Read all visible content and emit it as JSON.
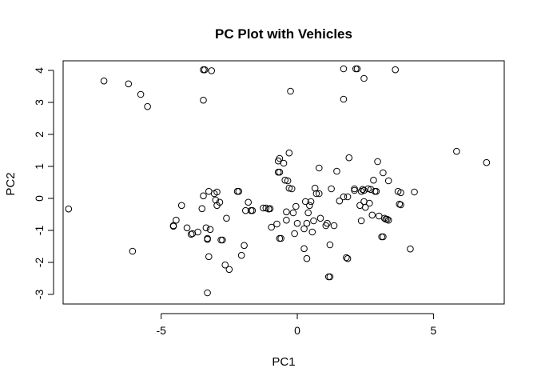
{
  "chart_data": {
    "type": "scatter",
    "title": "PC Plot with Vehicles",
    "xlabel": "PC1",
    "ylabel": "PC2",
    "xlim": [
      -8.6,
      7.6
    ],
    "ylim": [
      -3.3,
      4.3
    ],
    "xticks": [
      -5,
      0,
      5
    ],
    "xtick_labels": [
      "-5",
      "0",
      "5"
    ],
    "yticks": [
      -3,
      -2,
      -1,
      0,
      1,
      2,
      3,
      4
    ],
    "ytick_labels": [
      "-3",
      "-2",
      "-1",
      "0",
      "1",
      "2",
      "3",
      "4"
    ],
    "grid": false,
    "legend": "none",
    "marker": "open-circle",
    "points": [
      [
        -8.4,
        -0.33
      ],
      [
        -7.1,
        3.67
      ],
      [
        -6.2,
        3.58
      ],
      [
        -6.05,
        -1.65
      ],
      [
        -5.75,
        3.25
      ],
      [
        -5.5,
        2.87
      ],
      [
        -4.55,
        -0.87
      ],
      [
        -4.55,
        -0.85
      ],
      [
        -4.45,
        -0.68
      ],
      [
        -4.25,
        -0.22
      ],
      [
        -4.05,
        -0.92
      ],
      [
        -3.9,
        -1.12
      ],
      [
        -3.85,
        -1.1
      ],
      [
        -3.65,
        -1.05
      ],
      [
        -3.5,
        -0.32
      ],
      [
        -3.45,
        0.08
      ],
      [
        -3.45,
        4.02
      ],
      [
        -3.4,
        4.02
      ],
      [
        -3.45,
        3.07
      ],
      [
        -3.35,
        -0.92
      ],
      [
        -3.3,
        -1.28
      ],
      [
        -3.3,
        -1.25
      ],
      [
        -3.25,
        -1.82
      ],
      [
        -3.25,
        0.22
      ],
      [
        -3.2,
        -0.97
      ],
      [
        -3.15,
        3.99
      ],
      [
        -3.05,
        0.15
      ],
      [
        -3.0,
        -0.05
      ],
      [
        -2.95,
        0.2
      ],
      [
        -2.95,
        -0.22
      ],
      [
        -2.85,
        -0.12
      ],
      [
        -2.8,
        -1.3
      ],
      [
        -2.75,
        -1.3
      ],
      [
        -2.65,
        -2.08
      ],
      [
        -2.6,
        -0.62
      ],
      [
        -2.5,
        -2.22
      ],
      [
        -2.2,
        0.22
      ],
      [
        -2.15,
        0.22
      ],
      [
        -2.05,
        -1.78
      ],
      [
        -1.95,
        -1.47
      ],
      [
        -1.9,
        -0.38
      ],
      [
        -1.8,
        -0.12
      ],
      [
        -1.7,
        -0.38
      ],
      [
        -1.65,
        -0.38
      ],
      [
        -3.3,
        -2.95
      ],
      [
        -1.25,
        -0.3
      ],
      [
        -1.15,
        -0.3
      ],
      [
        -1.05,
        -0.33
      ],
      [
        -1.0,
        -0.32
      ],
      [
        -0.95,
        -0.9
      ],
      [
        -0.75,
        -0.8
      ],
      [
        -0.7,
        0.82
      ],
      [
        -0.7,
        1.17
      ],
      [
        -0.65,
        1.25
      ],
      [
        -0.65,
        0.82
      ],
      [
        -0.65,
        -1.25
      ],
      [
        -0.6,
        -1.25
      ],
      [
        -0.5,
        1.1
      ],
      [
        -0.45,
        0.57
      ],
      [
        -0.4,
        -0.68
      ],
      [
        -0.4,
        -0.42
      ],
      [
        -0.35,
        0.55
      ],
      [
        -0.3,
        1.42
      ],
      [
        -0.3,
        0.32
      ],
      [
        -0.25,
        3.35
      ],
      [
        -0.2,
        0.3
      ],
      [
        -0.15,
        -0.45
      ],
      [
        -0.1,
        -1.1
      ],
      [
        -0.05,
        -0.25
      ],
      [
        0.0,
        -0.78
      ],
      [
        0.25,
        -1.57
      ],
      [
        0.25,
        -0.95
      ],
      [
        0.3,
        -0.1
      ],
      [
        0.35,
        -0.78
      ],
      [
        0.35,
        -1.88
      ],
      [
        0.4,
        -0.45
      ],
      [
        0.45,
        -0.22
      ],
      [
        0.5,
        -0.1
      ],
      [
        0.55,
        -1.05
      ],
      [
        0.6,
        -0.7
      ],
      [
        0.65,
        0.32
      ],
      [
        0.7,
        0.15
      ],
      [
        0.8,
        0.15
      ],
      [
        0.8,
        0.95
      ],
      [
        0.85,
        -0.62
      ],
      [
        1.05,
        -0.85
      ],
      [
        1.1,
        -0.78
      ],
      [
        1.15,
        -2.45
      ],
      [
        1.2,
        -2.45
      ],
      [
        1.2,
        -1.45
      ],
      [
        1.25,
        0.3
      ],
      [
        1.35,
        -0.85
      ],
      [
        1.45,
        0.85
      ],
      [
        1.55,
        -0.08
      ],
      [
        1.7,
        0.05
      ],
      [
        1.7,
        4.05
      ],
      [
        1.7,
        3.1
      ],
      [
        1.8,
        -1.85
      ],
      [
        1.85,
        -1.88
      ],
      [
        1.85,
        0.05
      ],
      [
        1.9,
        1.27
      ],
      [
        2.1,
        0.3
      ],
      [
        2.1,
        0.25
      ],
      [
        2.15,
        4.05
      ],
      [
        2.2,
        4.05
      ],
      [
        2.3,
        -0.22
      ],
      [
        2.35,
        0.22
      ],
      [
        2.35,
        -0.7
      ],
      [
        2.4,
        0.28
      ],
      [
        2.45,
        0.25
      ],
      [
        2.45,
        -0.1
      ],
      [
        2.45,
        3.75
      ],
      [
        2.5,
        -0.28
      ],
      [
        2.6,
        0.3
      ],
      [
        2.65,
        -0.15
      ],
      [
        2.7,
        0.28
      ],
      [
        2.75,
        -0.52
      ],
      [
        2.8,
        0.57
      ],
      [
        2.85,
        0.22
      ],
      [
        2.9,
        0.22
      ],
      [
        2.95,
        1.15
      ],
      [
        3.0,
        -0.55
      ],
      [
        3.1,
        -1.2
      ],
      [
        3.15,
        0.8
      ],
      [
        3.15,
        -1.2
      ],
      [
        3.2,
        -0.62
      ],
      [
        3.25,
        -0.65
      ],
      [
        3.3,
        -0.65
      ],
      [
        3.35,
        -0.68
      ],
      [
        3.35,
        0.55
      ],
      [
        3.6,
        4.02
      ],
      [
        3.7,
        0.22
      ],
      [
        3.75,
        -0.18
      ],
      [
        3.8,
        -0.2
      ],
      [
        3.8,
        0.18
      ],
      [
        4.15,
        -1.58
      ],
      [
        4.3,
        0.2
      ],
      [
        5.85,
        1.47
      ],
      [
        6.95,
        1.12
      ]
    ]
  }
}
